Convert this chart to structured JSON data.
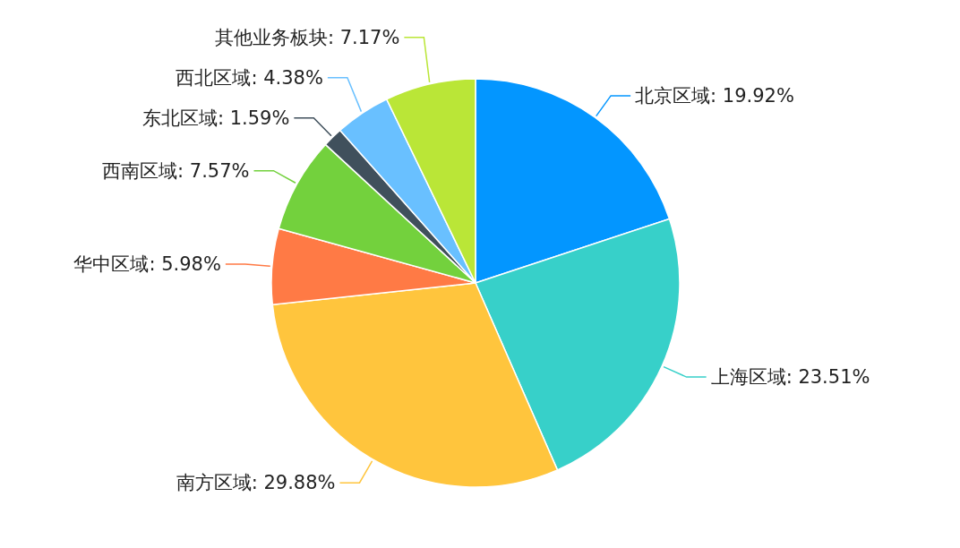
{
  "chart_data": {
    "type": "pie",
    "categories": [
      "北京区域",
      "上海区域",
      "南方区域",
      "华中区域",
      "西南区域",
      "东北区域",
      "西北区域",
      "其他业务板块"
    ],
    "values": [
      19.92,
      23.51,
      29.88,
      5.98,
      7.57,
      1.59,
      4.38,
      7.17
    ],
    "value_labels": [
      ": 19.92%",
      ": 23.51%",
      ": 29.88%",
      ": 5.98%",
      ": 7.57%",
      ": 1.59%",
      ": 4.38%",
      ": 7.17%"
    ],
    "colors": [
      "#0396ff",
      "#37d0c9",
      "#ffc53d",
      "#ff7a45",
      "#73d13d",
      "#40505c",
      "#69c0ff",
      "#bae637"
    ],
    "legend": false
  }
}
